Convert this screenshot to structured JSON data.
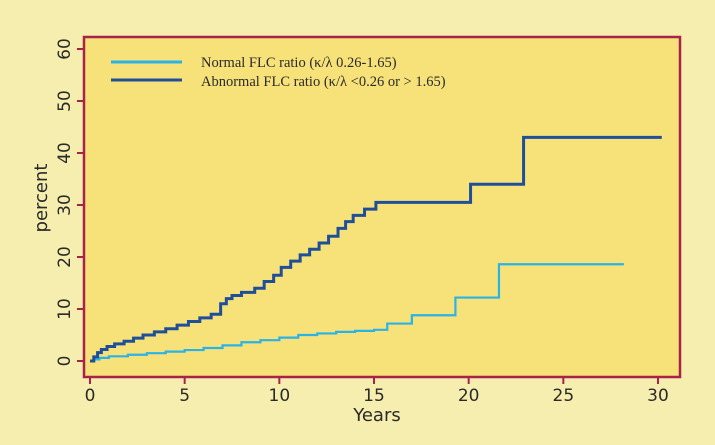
{
  "chart_data": {
    "type": "line",
    "title": "",
    "xlabel": "Years",
    "ylabel": "percent",
    "xlim": [
      0,
      30
    ],
    "ylim": [
      0,
      60
    ],
    "xticks": [
      0,
      5,
      10,
      15,
      20,
      25,
      30
    ],
    "yticks": [
      0,
      10,
      20,
      30,
      40,
      50,
      60
    ],
    "grid": false,
    "legend_position": "top-left",
    "step": true,
    "series": [
      {
        "name": "Normal FLC ratio (κ/λ 0.26-1.65)",
        "color": "#2ab3e6",
        "x": [
          0,
          0.2,
          0.5,
          1,
          2,
          3,
          4,
          5,
          6,
          7,
          8,
          9,
          10,
          11,
          12,
          13,
          14,
          15,
          15.7,
          17,
          19.3,
          20.5,
          21.6,
          24,
          28.2
        ],
        "y": [
          0,
          0.3,
          0.6,
          0.9,
          1.2,
          1.5,
          1.8,
          2.1,
          2.5,
          3.0,
          3.6,
          4.0,
          4.5,
          5.0,
          5.3,
          5.6,
          5.8,
          6.0,
          7.2,
          8.8,
          12.2,
          12.2,
          18.6,
          18.6,
          18.6
        ]
      },
      {
        "name": "Abnormal FLC ratio (κ/λ <0.26 or > 1.65)",
        "color": "#1f4f99",
        "x": [
          0,
          0.2,
          0.4,
          0.6,
          0.9,
          1.3,
          1.8,
          2.3,
          2.8,
          3.4,
          4,
          4.6,
          5.2,
          5.8,
          6.4,
          6.9,
          7.2,
          7.5,
          8,
          8.7,
          9.2,
          9.7,
          10.1,
          10.6,
          11.1,
          11.6,
          12.1,
          12.6,
          13.1,
          13.5,
          13.9,
          14.5,
          15.1,
          16,
          17,
          18,
          19.1,
          20.1,
          21,
          22,
          22.9,
          25,
          30.2
        ],
        "y": [
          0,
          0.8,
          1.6,
          2.2,
          2.8,
          3.3,
          3.8,
          4.4,
          5.0,
          5.6,
          6.2,
          6.9,
          7.6,
          8.3,
          9.0,
          11.0,
          12.0,
          12.6,
          13.2,
          14.0,
          15.3,
          16.5,
          18.0,
          19.2,
          20.4,
          21.5,
          22.7,
          24.0,
          25.5,
          26.8,
          28.0,
          29.2,
          30.5,
          30.5,
          30.5,
          30.5,
          30.5,
          34.0,
          34.0,
          34.0,
          43.0,
          43.0,
          43.0
        ]
      }
    ]
  }
}
